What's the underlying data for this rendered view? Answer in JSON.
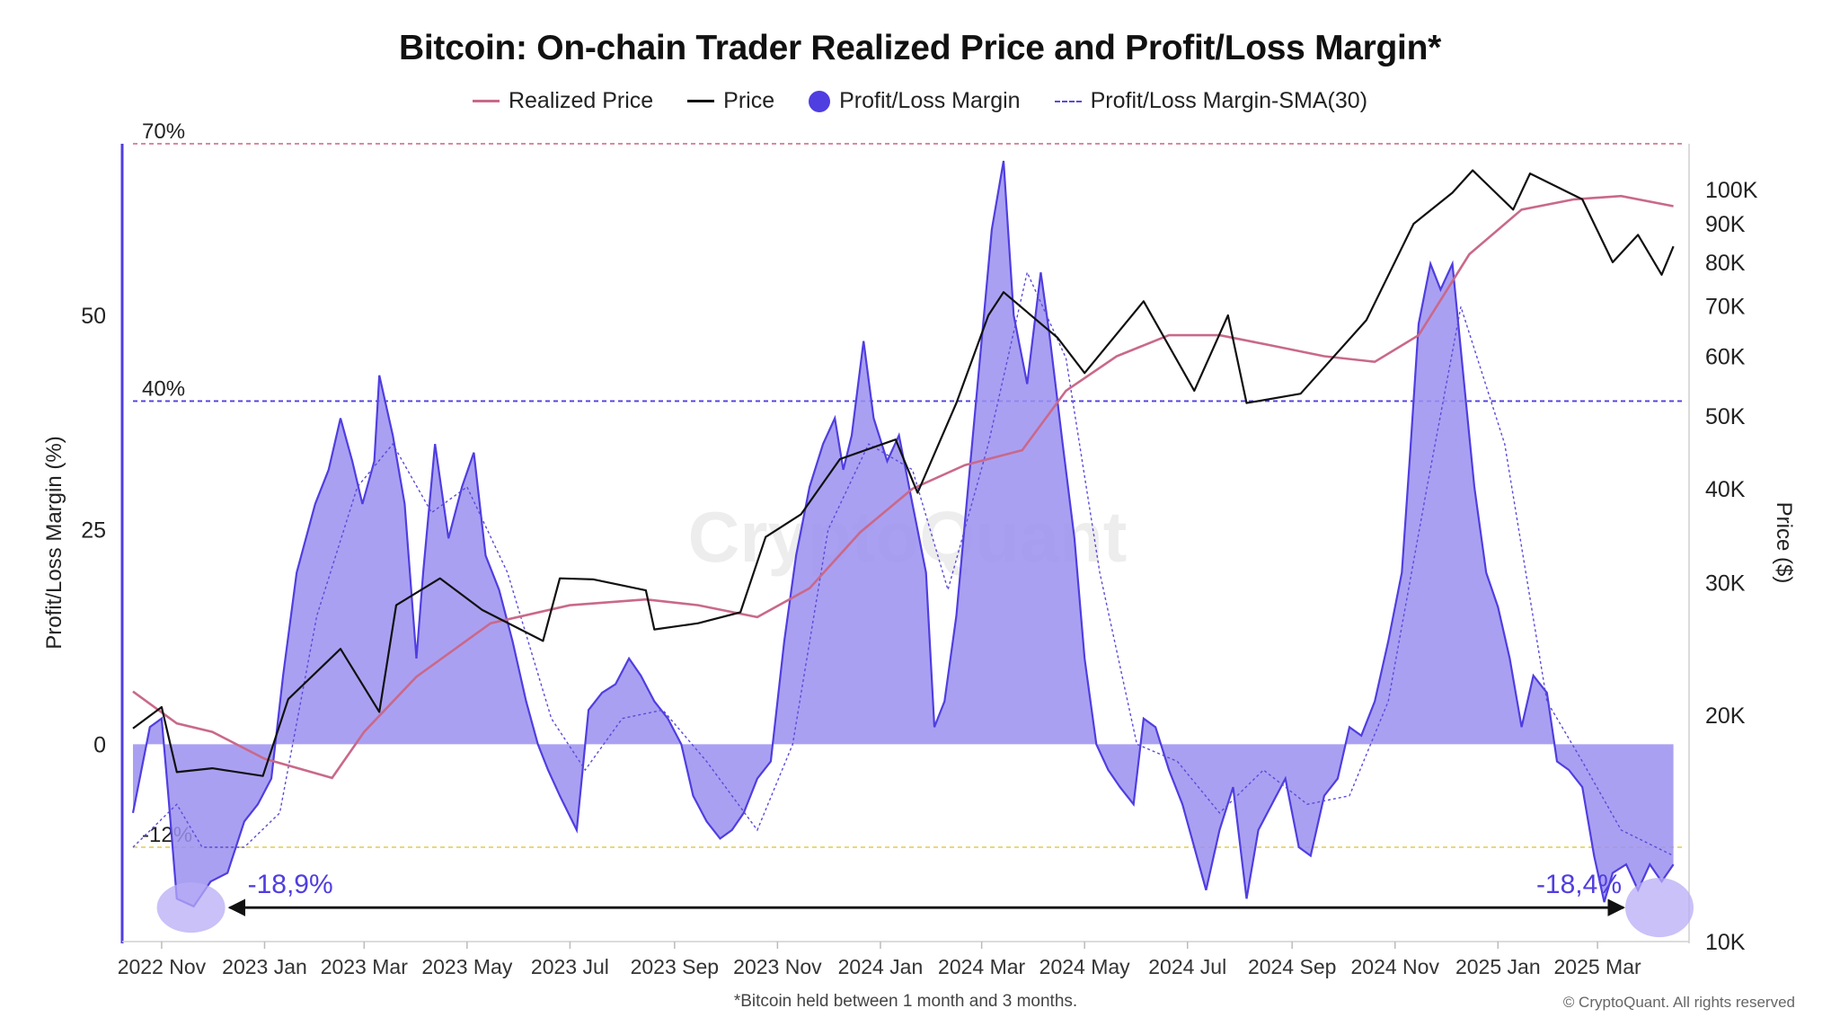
{
  "chart_data": {
    "type": "area",
    "title": "Bitcoin: On-chain Trader Realized Price and Profit/Loss Margin*",
    "footnote": "*Bitcoin held between 1 month and 3 months.",
    "copyright": "© CryptoQuant. All rights reserved",
    "watermark": "CryptoQuant",
    "legend": [
      {
        "label": "Realized Price",
        "style": "line",
        "color": "#c9698a"
      },
      {
        "label": "Price",
        "style": "line",
        "color": "#111111"
      },
      {
        "label": "Profit/Loss Margin",
        "style": "dot",
        "color": "#4f3ee0"
      },
      {
        "label": "Profit/Loss Margin-SMA(30)",
        "style": "dashed",
        "color": "#5b4bd6"
      }
    ],
    "legend_position": "top-center",
    "ylabel_left": "Profit/Loss Margin (%)",
    "ylabel_right": "Price ($)",
    "y_left_ticks": [
      0,
      25,
      50
    ],
    "y_left_range": [
      -23,
      70
    ],
    "y_right_scale": "log",
    "y_right_ticks": [
      {
        "value": 10000,
        "label": "10K"
      },
      {
        "value": 20000,
        "label": "20K"
      },
      {
        "value": 30000,
        "label": "30K"
      },
      {
        "value": 40000,
        "label": "40K"
      },
      {
        "value": 50000,
        "label": "50K"
      },
      {
        "value": 60000,
        "label": "60K"
      },
      {
        "value": 70000,
        "label": "70K"
      },
      {
        "value": 80000,
        "label": "80K"
      },
      {
        "value": 90000,
        "label": "90K"
      },
      {
        "value": 100000,
        "label": "100K"
      }
    ],
    "y_right_range": [
      10000,
      115000
    ],
    "x_ticks": [
      "2022 Nov",
      "2023 Jan",
      "2023 Mar",
      "2023 May",
      "2023 Jul",
      "2023 Sep",
      "2023 Nov",
      "2024 Jan",
      "2024 Mar",
      "2024 May",
      "2024 Jul",
      "2024 Sep",
      "2024 Nov",
      "2025 Jan",
      "2025 Mar"
    ],
    "x_range": [
      "2022-10-15",
      "2025-04-20"
    ],
    "reference_lines": [
      {
        "value": 70,
        "label": "70%",
        "color": "#d27a92"
      },
      {
        "value": 40,
        "label": "40%",
        "color": "#4f3ee0"
      },
      {
        "value": -12,
        "label": "-12%",
        "color": "#e6d36a"
      }
    ],
    "annotations": [
      {
        "label": "-18,9%",
        "date": "2022-11-20",
        "value": -18.9
      },
      {
        "label": "-18,4%",
        "date": "2025-03-10",
        "value": -18.4
      }
    ],
    "series": [
      {
        "name": "Profit/Loss Margin",
        "axis": "left",
        "points": [
          [
            "2022-10-15",
            -8
          ],
          [
            "2022-10-25",
            2
          ],
          [
            "2022-11-01",
            3
          ],
          [
            "2022-11-05",
            -6
          ],
          [
            "2022-11-10",
            -18
          ],
          [
            "2022-11-20",
            -18.9
          ],
          [
            "2022-11-30",
            -16
          ],
          [
            "2022-12-10",
            -15
          ],
          [
            "2022-12-20",
            -9
          ],
          [
            "2022-12-28",
            -7
          ],
          [
            "2023-01-05",
            -4
          ],
          [
            "2023-01-12",
            8
          ],
          [
            "2023-01-20",
            20
          ],
          [
            "2023-01-31",
            28
          ],
          [
            "2023-02-08",
            32
          ],
          [
            "2023-02-15",
            38
          ],
          [
            "2023-02-22",
            33
          ],
          [
            "2023-02-28",
            28
          ],
          [
            "2023-03-07",
            33
          ],
          [
            "2023-03-10",
            43
          ],
          [
            "2023-03-18",
            36
          ],
          [
            "2023-03-25",
            28
          ],
          [
            "2023-04-01",
            10
          ],
          [
            "2023-04-05",
            20
          ],
          [
            "2023-04-12",
            35
          ],
          [
            "2023-04-20",
            24
          ],
          [
            "2023-04-28",
            30
          ],
          [
            "2023-05-05",
            34
          ],
          [
            "2023-05-12",
            22
          ],
          [
            "2023-05-20",
            18
          ],
          [
            "2023-05-28",
            12
          ],
          [
            "2023-06-05",
            5
          ],
          [
            "2023-06-12",
            0
          ],
          [
            "2023-06-18",
            -3
          ],
          [
            "2023-06-25",
            -6
          ],
          [
            "2023-07-05",
            -10
          ],
          [
            "2023-07-12",
            4
          ],
          [
            "2023-07-20",
            6
          ],
          [
            "2023-07-28",
            7
          ],
          [
            "2023-08-05",
            10
          ],
          [
            "2023-08-12",
            8
          ],
          [
            "2023-08-20",
            5
          ],
          [
            "2023-08-28",
            3
          ],
          [
            "2023-09-05",
            0
          ],
          [
            "2023-09-12",
            -6
          ],
          [
            "2023-09-20",
            -9
          ],
          [
            "2023-09-28",
            -11
          ],
          [
            "2023-10-05",
            -10
          ],
          [
            "2023-10-12",
            -8
          ],
          [
            "2023-10-20",
            -4
          ],
          [
            "2023-10-28",
            -2
          ],
          [
            "2023-11-05",
            12
          ],
          [
            "2023-11-12",
            22
          ],
          [
            "2023-11-20",
            30
          ],
          [
            "2023-11-28",
            35
          ],
          [
            "2023-12-05",
            38
          ],
          [
            "2023-12-10",
            32
          ],
          [
            "2023-12-15",
            36
          ],
          [
            "2023-12-22",
            47
          ],
          [
            "2023-12-28",
            38
          ],
          [
            "2024-01-05",
            33
          ],
          [
            "2024-01-12",
            36
          ],
          [
            "2024-01-20",
            28
          ],
          [
            "2024-01-28",
            20
          ],
          [
            "2024-02-02",
            2
          ],
          [
            "2024-02-08",
            5
          ],
          [
            "2024-02-15",
            15
          ],
          [
            "2024-02-22",
            30
          ],
          [
            "2024-02-29",
            45
          ],
          [
            "2024-03-07",
            60
          ],
          [
            "2024-03-14",
            68
          ],
          [
            "2024-03-20",
            50
          ],
          [
            "2024-03-28",
            42
          ],
          [
            "2024-04-05",
            55
          ],
          [
            "2024-04-10",
            48
          ],
          [
            "2024-04-18",
            35
          ],
          [
            "2024-04-25",
            24
          ],
          [
            "2024-05-01",
            10
          ],
          [
            "2024-05-08",
            0
          ],
          [
            "2024-05-15",
            -3
          ],
          [
            "2024-05-22",
            -5
          ],
          [
            "2024-05-30",
            -7
          ],
          [
            "2024-06-05",
            3
          ],
          [
            "2024-06-12",
            2
          ],
          [
            "2024-06-20",
            -3
          ],
          [
            "2024-06-28",
            -7
          ],
          [
            "2024-07-05",
            -12
          ],
          [
            "2024-07-12",
            -17
          ],
          [
            "2024-07-20",
            -10
          ],
          [
            "2024-07-28",
            -5
          ],
          [
            "2024-08-05",
            -18
          ],
          [
            "2024-08-12",
            -10
          ],
          [
            "2024-08-20",
            -7
          ],
          [
            "2024-08-28",
            -4
          ],
          [
            "2024-09-05",
            -12
          ],
          [
            "2024-09-12",
            -13
          ],
          [
            "2024-09-20",
            -6
          ],
          [
            "2024-09-28",
            -4
          ],
          [
            "2024-10-05",
            2
          ],
          [
            "2024-10-12",
            1
          ],
          [
            "2024-10-20",
            5
          ],
          [
            "2024-10-28",
            12
          ],
          [
            "2024-11-05",
            20
          ],
          [
            "2024-11-10",
            34
          ],
          [
            "2024-11-15",
            49
          ],
          [
            "2024-11-22",
            56
          ],
          [
            "2024-11-28",
            53
          ],
          [
            "2024-12-05",
            56
          ],
          [
            "2024-12-12",
            42
          ],
          [
            "2024-12-18",
            30
          ],
          [
            "2024-12-25",
            20
          ],
          [
            "2025-01-01",
            16
          ],
          [
            "2025-01-08",
            10
          ],
          [
            "2025-01-15",
            2
          ],
          [
            "2025-01-22",
            8
          ],
          [
            "2025-01-30",
            6
          ],
          [
            "2025-02-05",
            -2
          ],
          [
            "2025-02-12",
            -3
          ],
          [
            "2025-02-20",
            -5
          ],
          [
            "2025-02-27",
            -13
          ],
          [
            "2025-03-05",
            -18.4
          ],
          [
            "2025-03-10",
            -15
          ],
          [
            "2025-03-18",
            -14
          ],
          [
            "2025-03-25",
            -17
          ],
          [
            "2025-04-01",
            -14
          ],
          [
            "2025-04-08",
            -16
          ],
          [
            "2025-04-15",
            -14
          ]
        ]
      },
      {
        "name": "Profit/Loss Margin-SMA(30)",
        "axis": "left",
        "points": [
          [
            "2022-10-15",
            -12
          ],
          [
            "2022-11-10",
            -7
          ],
          [
            "2022-11-25",
            -12
          ],
          [
            "2022-12-20",
            -12
          ],
          [
            "2023-01-10",
            -8
          ],
          [
            "2023-02-01",
            15
          ],
          [
            "2023-02-25",
            30
          ],
          [
            "2023-03-18",
            35
          ],
          [
            "2023-04-10",
            27
          ],
          [
            "2023-05-01",
            30
          ],
          [
            "2023-05-25",
            20
          ],
          [
            "2023-06-20",
            3
          ],
          [
            "2023-07-10",
            -3
          ],
          [
            "2023-08-01",
            3
          ],
          [
            "2023-08-25",
            4
          ],
          [
            "2023-09-20",
            -2
          ],
          [
            "2023-10-20",
            -10
          ],
          [
            "2023-11-10",
            0
          ],
          [
            "2023-12-01",
            25
          ],
          [
            "2023-12-25",
            35
          ],
          [
            "2024-01-20",
            32
          ],
          [
            "2024-02-10",
            18
          ],
          [
            "2024-03-05",
            35
          ],
          [
            "2024-03-28",
            55
          ],
          [
            "2024-04-20",
            45
          ],
          [
            "2024-05-10",
            20
          ],
          [
            "2024-06-01",
            0
          ],
          [
            "2024-06-25",
            -2
          ],
          [
            "2024-07-20",
            -8
          ],
          [
            "2024-08-15",
            -3
          ],
          [
            "2024-09-10",
            -7
          ],
          [
            "2024-10-05",
            -6
          ],
          [
            "2024-10-28",
            5
          ],
          [
            "2024-11-20",
            30
          ],
          [
            "2024-12-10",
            51
          ],
          [
            "2025-01-05",
            35
          ],
          [
            "2025-01-30",
            5
          ],
          [
            "2025-02-20",
            -2
          ],
          [
            "2025-03-15",
            -10
          ],
          [
            "2025-04-15",
            -13
          ]
        ]
      },
      {
        "name": "Price",
        "axis": "right",
        "points": [
          [
            "2022-10-15",
            19200
          ],
          [
            "2022-11-01",
            20500
          ],
          [
            "2022-11-10",
            16800
          ],
          [
            "2022-12-01",
            17000
          ],
          [
            "2022-12-31",
            16600
          ],
          [
            "2023-01-15",
            21000
          ],
          [
            "2023-02-15",
            24500
          ],
          [
            "2023-03-10",
            20200
          ],
          [
            "2023-03-20",
            28000
          ],
          [
            "2023-04-15",
            30400
          ],
          [
            "2023-05-10",
            27600
          ],
          [
            "2023-06-15",
            25100
          ],
          [
            "2023-06-25",
            30400
          ],
          [
            "2023-07-15",
            30300
          ],
          [
            "2023-08-15",
            29300
          ],
          [
            "2023-08-20",
            26000
          ],
          [
            "2023-09-15",
            26500
          ],
          [
            "2023-10-10",
            27400
          ],
          [
            "2023-10-25",
            34500
          ],
          [
            "2023-11-15",
            37000
          ],
          [
            "2023-12-08",
            43800
          ],
          [
            "2024-01-10",
            46500
          ],
          [
            "2024-01-23",
            39500
          ],
          [
            "2024-02-15",
            52000
          ],
          [
            "2024-03-05",
            68000
          ],
          [
            "2024-03-14",
            73000
          ],
          [
            "2024-04-15",
            63500
          ],
          [
            "2024-05-01",
            57000
          ],
          [
            "2024-06-05",
            71000
          ],
          [
            "2024-07-05",
            54000
          ],
          [
            "2024-07-25",
            68000
          ],
          [
            "2024-08-05",
            52000
          ],
          [
            "2024-09-06",
            53500
          ],
          [
            "2024-10-15",
            67000
          ],
          [
            "2024-11-12",
            90000
          ],
          [
            "2024-12-05",
            99000
          ],
          [
            "2024-12-17",
            106000
          ],
          [
            "2025-01-10",
            94000
          ],
          [
            "2025-01-20",
            105000
          ],
          [
            "2025-02-20",
            97000
          ],
          [
            "2025-03-10",
            80000
          ],
          [
            "2025-03-25",
            87000
          ],
          [
            "2025-04-08",
            77000
          ],
          [
            "2025-04-15",
            84000
          ]
        ]
      },
      {
        "name": "Realized Price",
        "axis": "right",
        "points": [
          [
            "2022-10-15",
            21500
          ],
          [
            "2022-11-10",
            19500
          ],
          [
            "2022-12-01",
            19000
          ],
          [
            "2023-01-01",
            17500
          ],
          [
            "2023-02-10",
            16500
          ],
          [
            "2023-03-01",
            19000
          ],
          [
            "2023-04-01",
            22500
          ],
          [
            "2023-05-15",
            26500
          ],
          [
            "2023-07-01",
            28000
          ],
          [
            "2023-08-15",
            28500
          ],
          [
            "2023-09-15",
            28000
          ],
          [
            "2023-10-20",
            27000
          ],
          [
            "2023-11-20",
            29500
          ],
          [
            "2023-12-20",
            35000
          ],
          [
            "2024-01-20",
            40000
          ],
          [
            "2024-02-20",
            43000
          ],
          [
            "2024-03-25",
            45000
          ],
          [
            "2024-04-20",
            54000
          ],
          [
            "2024-05-20",
            60000
          ],
          [
            "2024-06-20",
            64000
          ],
          [
            "2024-07-20",
            64000
          ],
          [
            "2024-08-20",
            62000
          ],
          [
            "2024-09-20",
            60000
          ],
          [
            "2024-10-20",
            59000
          ],
          [
            "2024-11-15",
            64000
          ],
          [
            "2024-12-15",
            82000
          ],
          [
            "2025-01-15",
            94000
          ],
          [
            "2025-02-15",
            97000
          ],
          [
            "2025-03-15",
            98000
          ],
          [
            "2025-04-15",
            95000
          ]
        ]
      }
    ]
  }
}
